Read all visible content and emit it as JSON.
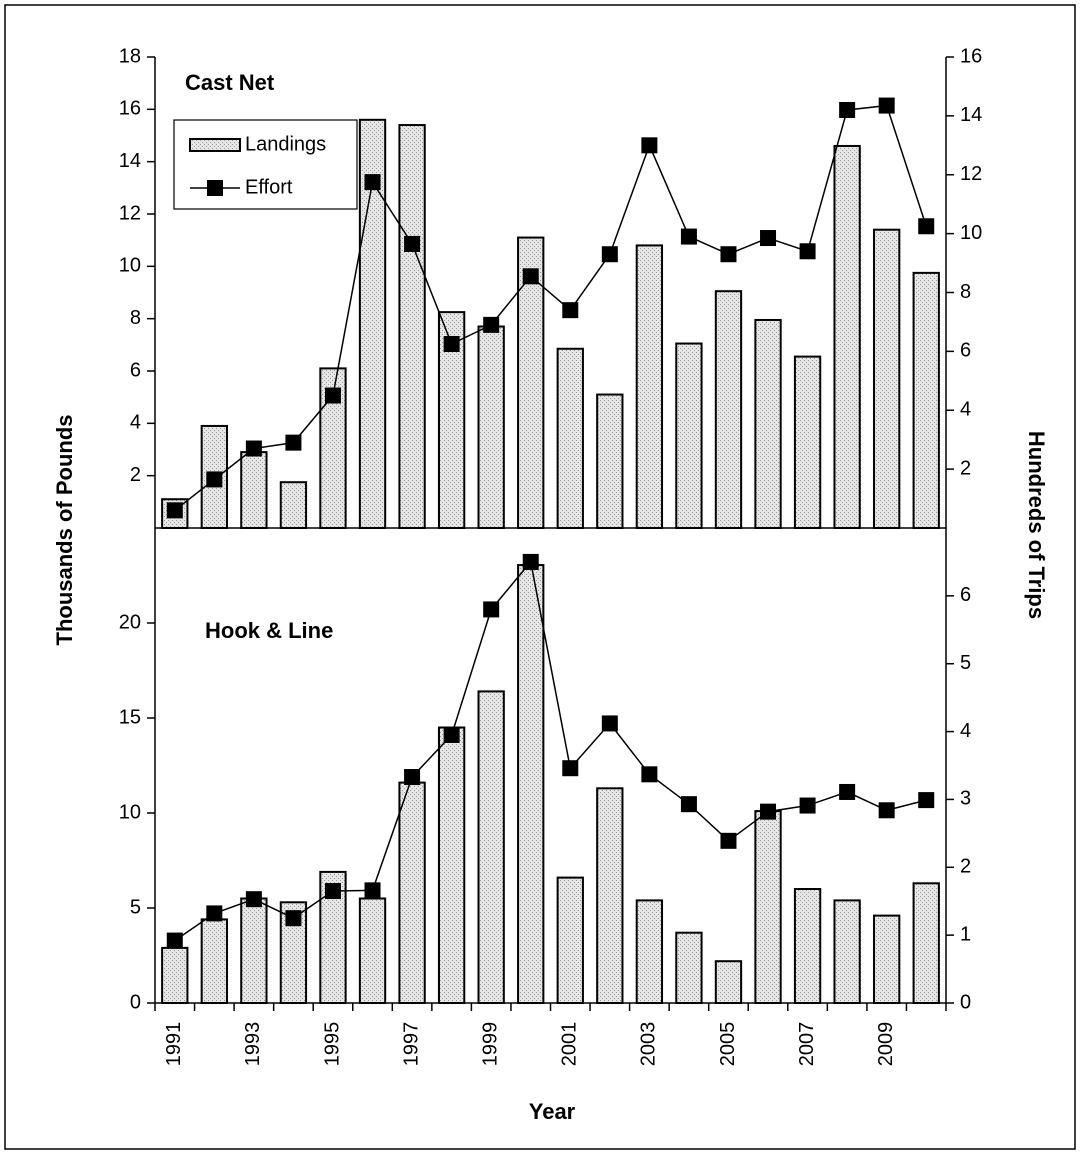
{
  "chart_data": [
    {
      "type": "combo",
      "title": "Cast Net",
      "ylabel": "Thousands of Pounds",
      "y2label": "Hundreds of Trips",
      "ylim": [
        0,
        18
      ],
      "yticks": [
        2,
        4,
        6,
        8,
        10,
        12,
        14,
        16,
        18
      ],
      "y2lim": [
        0,
        16
      ],
      "y2ticks": [
        2,
        4,
        6,
        8,
        10,
        12,
        14,
        16
      ],
      "legend": "upper left",
      "series": [
        {
          "name": "Landings",
          "type": "bar",
          "color": "#dcdcdc",
          "values": [
            1.1,
            3.9,
            2.9,
            1.75,
            6.1,
            15.6,
            15.4,
            8.25,
            7.7,
            11.1,
            6.85,
            5.1,
            10.8,
            7.05,
            9.05,
            7.95,
            6.55,
            14.6,
            11.4,
            9.75
          ]
        },
        {
          "name": "Effort",
          "type": "line",
          "axis": "y2",
          "color": "#000000",
          "values": [
            0.6,
            1.65,
            2.7,
            2.9,
            4.5,
            11.75,
            9.65,
            6.25,
            6.9,
            8.55,
            7.4,
            9.3,
            13.0,
            9.9,
            9.3,
            9.85,
            9.4,
            14.2,
            14.35,
            10.25
          ]
        }
      ]
    },
    {
      "type": "combo",
      "title": "Hook & Line",
      "xlabel": "Year",
      "categories": [
        "1991",
        null,
        "1993",
        null,
        "1995",
        null,
        "1997",
        null,
        "1999",
        null,
        "2001",
        null,
        "2003",
        null,
        "2005",
        null,
        "2007",
        null,
        "2009",
        null
      ],
      "ylim": [
        0,
        25
      ],
      "yticks": [
        0,
        5,
        10,
        15,
        20
      ],
      "y2lim": [
        0,
        7
      ],
      "y2ticks": [
        0,
        1,
        2,
        3,
        4,
        5,
        6
      ],
      "series": [
        {
          "type": "bar",
          "color": "#dcdcdc",
          "values": [
            2.9,
            4.4,
            5.5,
            5.3,
            6.9,
            5.5,
            11.6,
            14.5,
            16.4,
            23.05,
            6.6,
            11.3,
            5.4,
            3.7,
            2.2,
            10.1,
            6.0,
            5.4,
            4.6,
            6.3
          ]
        },
        {
          "type": "line",
          "axis": "y2",
          "color": "#000000",
          "values": [
            0.92,
            1.32,
            1.53,
            1.25,
            1.65,
            1.66,
            3.33,
            3.95,
            5.8,
            6.5,
            3.46,
            4.12,
            3.37,
            2.93,
            2.39,
            2.82,
            2.91,
            3.11,
            2.84,
            2.99
          ]
        }
      ]
    }
  ]
}
